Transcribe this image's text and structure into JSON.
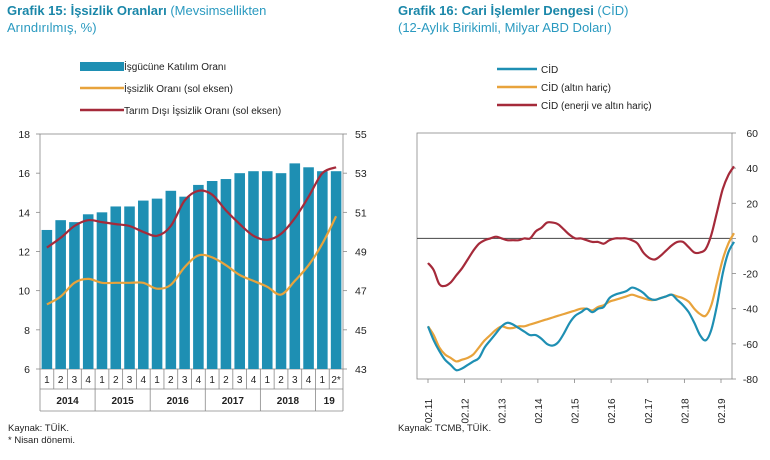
{
  "left": {
    "title_bold": "Grafik 15: İşsizlik Oranları",
    "title_rest": " (Mevsimsellikten",
    "title_line2": "Arındırılmış, %)",
    "source": "Kaynak: TÜİK.",
    "note": "* Nisan dönemi."
  },
  "right": {
    "title_bold": "Grafik 16: Cari İşlemler Dengesi",
    "title_rest": " (CİD)",
    "title_line2": "(12-Aylık Birikimli, Milyar ABD Doları)",
    "source": "Kaynak: TCMB, TÜİK."
  },
  "colors": {
    "bar": "#1e8fb3",
    "orange": "#e8a33c",
    "red": "#a52a3a",
    "blue": "#1e8fb3"
  },
  "chart_data": [
    {
      "type": "bar",
      "legend": [
        "İşgücüne Katılım Oranı",
        "İşsizlik Oranı (sol eksen)",
        "Tarım Dışı İşsizlik Oranı (sol eksen)"
      ],
      "quarters": [
        "1",
        "2",
        "3",
        "4",
        "1",
        "2",
        "3",
        "4",
        "1",
        "2",
        "3",
        "4",
        "1",
        "2",
        "3",
        "4",
        "1",
        "2",
        "3",
        "4",
        "1",
        "2*"
      ],
      "years": [
        "2014",
        "2015",
        "2016",
        "2017",
        "2018",
        "19"
      ],
      "left_axis": {
        "ylim": [
          6,
          18
        ],
        "ticks": [
          "6",
          "8",
          "10",
          "12",
          "14",
          "16",
          "18"
        ]
      },
      "right_axis": {
        "ylim": [
          43,
          55
        ],
        "ticks": [
          "43",
          "45",
          "47",
          "49",
          "51",
          "53",
          "55"
        ]
      },
      "series": [
        {
          "name": "İşgücüne Katılım Oranı",
          "axis": "right",
          "values": [
            50.1,
            50.6,
            50.5,
            50.9,
            51.0,
            51.3,
            51.3,
            51.6,
            51.7,
            52.1,
            51.8,
            52.4,
            52.6,
            52.7,
            53.0,
            53.1,
            53.1,
            53.0,
            53.5,
            53.3,
            53.1,
            53.1
          ]
        },
        {
          "name": "İşsizlik Oranı (sol eksen)",
          "axis": "left",
          "values": [
            9.3,
            9.7,
            10.4,
            10.6,
            10.4,
            10.4,
            10.4,
            10.4,
            10.1,
            10.3,
            11.2,
            11.8,
            11.7,
            11.3,
            10.8,
            10.5,
            10.2,
            9.8,
            10.5,
            11.3,
            12.4,
            13.8
          ]
        },
        {
          "name": "Tarım Dışı İşsizlik Oranı (sol eksen)",
          "axis": "left",
          "values": [
            12.2,
            12.7,
            13.3,
            13.6,
            13.5,
            13.4,
            13.3,
            13.0,
            12.8,
            13.3,
            14.6,
            15.1,
            14.9,
            14.1,
            13.4,
            12.8,
            12.6,
            12.9,
            13.7,
            14.8,
            16.0,
            16.3
          ]
        }
      ]
    },
    {
      "type": "line",
      "legend": [
        "CİD",
        "CİD (altın hariç)",
        "CİD (enerji ve altın hariç)"
      ],
      "x_ticks": [
        "02.11",
        "02.12",
        "02.13",
        "02.14",
        "02.15",
        "02.16",
        "02.17",
        "02.18",
        "02.19"
      ],
      "ylim": [
        -80,
        60
      ],
      "y_ticks": [
        "60",
        "40",
        "20",
        "0",
        "-20",
        "-40",
        "-60",
        "-80"
      ],
      "series": [
        {
          "name": "CİD",
          "values": [
            -50,
            -58,
            -64,
            -69,
            -72,
            -75,
            -74,
            -72,
            -70,
            -68,
            -62,
            -58,
            -54,
            -50,
            -48,
            -49,
            -51,
            -53,
            -55,
            -55,
            -57,
            -60,
            -61,
            -59,
            -54,
            -48,
            -44,
            -42,
            -40,
            -42,
            -40,
            -39,
            -34,
            -32,
            -31,
            -30,
            -28,
            -29,
            -31,
            -34,
            -35,
            -34,
            -33,
            -32,
            -35,
            -38,
            -42,
            -48,
            -55,
            -58,
            -52,
            -38,
            -20,
            -8,
            -2
          ]
        },
        {
          "name": "CİD (altın hariç)",
          "values": [
            -50,
            -55,
            -62,
            -66,
            -68,
            -70,
            -69,
            -68,
            -66,
            -62,
            -58,
            -55,
            -52,
            -50,
            -51,
            -51,
            -50,
            -50,
            -49,
            -48,
            -47,
            -46,
            -45,
            -44,
            -43,
            -42,
            -41,
            -40,
            -40,
            -41,
            -39,
            -38,
            -36,
            -35,
            -34,
            -33,
            -32,
            -33,
            -34,
            -35,
            -35,
            -34,
            -33,
            -32,
            -33,
            -34,
            -36,
            -40,
            -43,
            -44,
            -38,
            -25,
            -12,
            -3,
            3
          ]
        },
        {
          "name": "CİD (enerji ve altın hariç)",
          "values": [
            -14,
            -18,
            -26,
            -27,
            -25,
            -21,
            -17,
            -12,
            -7,
            -3,
            -1,
            0,
            1,
            0,
            -1,
            -1,
            -1,
            0,
            0,
            4,
            6,
            9,
            9,
            8,
            5,
            2,
            0,
            0,
            -1,
            -2,
            -2,
            -3,
            -1,
            0,
            0,
            0,
            -1,
            -3,
            -8,
            -11,
            -12,
            -10,
            -7,
            -4,
            -2,
            -2,
            -5,
            -8,
            -8,
            -6,
            2,
            15,
            28,
            36,
            41
          ]
        }
      ]
    }
  ]
}
